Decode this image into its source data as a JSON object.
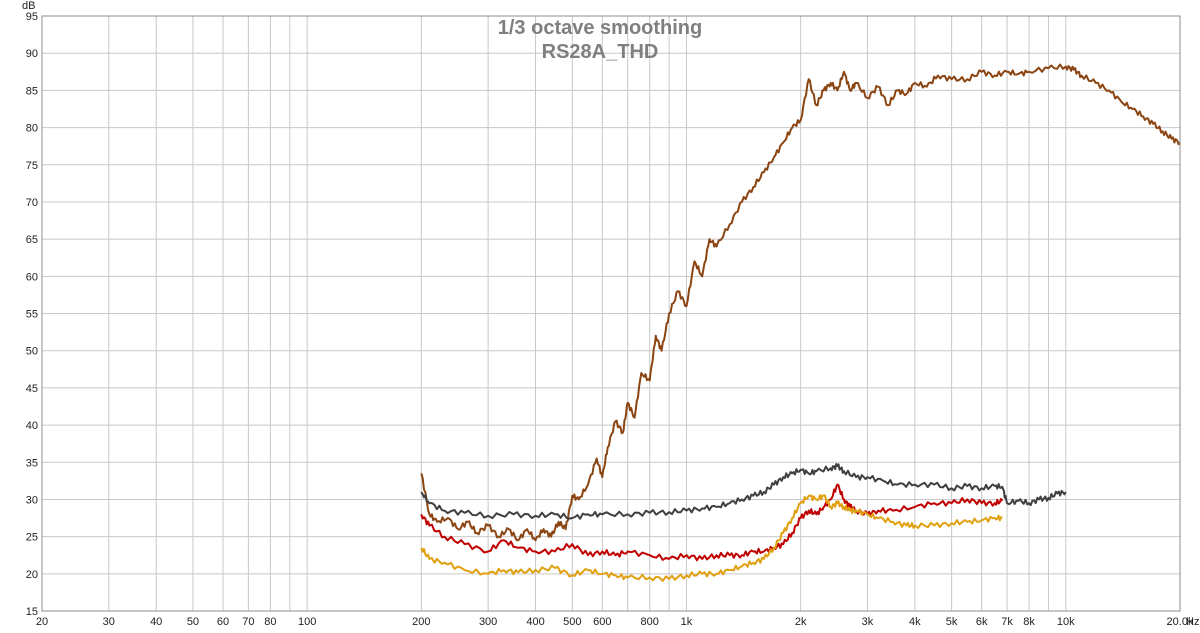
{
  "chart_data": {
    "type": "line",
    "title": "1/3 octave smoothing",
    "subtitle": "RS28A_THD",
    "ylabel": "dB",
    "xunit": "Hz",
    "xscale": "log",
    "xlim": [
      20,
      20000
    ],
    "ylim": [
      15,
      95
    ],
    "grid": true,
    "yticks": [
      15,
      20,
      25,
      30,
      35,
      40,
      45,
      50,
      55,
      60,
      65,
      70,
      75,
      80,
      85,
      90,
      95
    ],
    "xticks": [
      {
        "v": 20,
        "label": "20"
      },
      {
        "v": 30,
        "label": "30"
      },
      {
        "v": 40,
        "label": "40"
      },
      {
        "v": 50,
        "label": "50"
      },
      {
        "v": 60,
        "label": "60"
      },
      {
        "v": 70,
        "label": "70"
      },
      {
        "v": 80,
        "label": "80"
      },
      {
        "v": 100,
        "label": "100"
      },
      {
        "v": 200,
        "label": "200"
      },
      {
        "v": 300,
        "label": "300"
      },
      {
        "v": 400,
        "label": "400"
      },
      {
        "v": 500,
        "label": "500"
      },
      {
        "v": 600,
        "label": "600"
      },
      {
        "v": 800,
        "label": "800"
      },
      {
        "v": 1000,
        "label": "1k"
      },
      {
        "v": 2000,
        "label": "2k"
      },
      {
        "v": 3000,
        "label": "3k"
      },
      {
        "v": 4000,
        "label": "4k"
      },
      {
        "v": 5000,
        "label": "5k"
      },
      {
        "v": 6000,
        "label": "6k"
      },
      {
        "v": 7000,
        "label": "7k"
      },
      {
        "v": 8000,
        "label": "8k"
      },
      {
        "v": 10000,
        "label": "10k"
      },
      {
        "v": 20000,
        "label": "20.0k"
      }
    ],
    "series": [
      {
        "color": "#8b4513",
        "x": [
          200,
          210,
          220,
          235,
          250,
          265,
          280,
          300,
          320,
          340,
          360,
          380,
          400,
          420,
          440,
          460,
          480,
          500,
          520,
          550,
          580,
          600,
          620,
          650,
          680,
          700,
          730,
          760,
          800,
          830,
          860,
          900,
          950,
          1000,
          1050,
          1100,
          1150,
          1200,
          1300,
          1400,
          1500,
          1600,
          1700,
          1800,
          1900,
          2000,
          2100,
          2200,
          2300,
          2400,
          2500,
          2600,
          2700,
          2800,
          3000,
          3200,
          3400,
          3600,
          3800,
          4000,
          4300,
          4600,
          5000,
          5500,
          6000,
          6500,
          7000,
          7500,
          8000,
          9000,
          10000,
          10500,
          11000,
          12000,
          13000,
          14000,
          15000,
          16000,
          17000,
          18000,
          19000,
          20000
        ],
        "y": [
          33.5,
          28,
          27,
          27.5,
          26,
          27,
          25.5,
          26.5,
          25,
          26,
          24.5,
          26,
          24.5,
          26,
          25,
          27,
          26,
          30.5,
          30,
          32,
          35.5,
          33,
          37,
          40.5,
          39,
          43,
          41,
          47,
          46,
          52,
          50,
          55,
          58,
          56,
          62,
          60,
          65,
          64,
          67,
          70,
          72,
          74,
          76,
          78,
          80,
          81,
          86.5,
          83,
          85,
          86,
          85,
          87.5,
          85,
          86,
          84,
          85.5,
          83,
          85,
          84.5,
          86,
          85.5,
          87,
          86.5,
          86.5,
          87.5,
          87,
          87.5,
          87.2,
          87.5,
          88,
          88.2,
          87.8,
          87,
          86,
          85,
          83.5,
          82.5,
          81.5,
          80.5,
          79.5,
          78.5,
          78
        ]
      },
      {
        "color": "#404040",
        "x": [
          200,
          210,
          230,
          260,
          300,
          350,
          400,
          450,
          500,
          550,
          600,
          700,
          800,
          900,
          1000,
          1100,
          1200,
          1300,
          1400,
          1500,
          1600,
          1700,
          1800,
          1900,
          2000,
          2100,
          2200,
          2400,
          2500,
          2600,
          2800,
          3000,
          3300,
          3600,
          4000,
          4500,
          5000,
          5500,
          6000,
          6500,
          6800,
          7000,
          7500,
          8000,
          8500,
          9000,
          9500,
          10000
        ],
        "y": [
          31,
          29.5,
          28.5,
          28.2,
          27.8,
          28,
          27.8,
          28,
          27.5,
          28,
          28,
          28,
          28.2,
          28.3,
          28.5,
          28.8,
          29,
          29.5,
          30,
          30.5,
          31,
          32,
          33,
          33.5,
          34,
          33.5,
          33.8,
          34.2,
          34.5,
          33.8,
          33,
          33,
          32.5,
          32,
          32,
          32,
          31.5,
          31.8,
          31.5,
          31.8,
          31.7,
          29.5,
          29.8,
          29.5,
          30,
          30.2,
          30.8,
          31
        ]
      },
      {
        "color": "#c00000",
        "x": [
          200,
          210,
          230,
          260,
          300,
          330,
          360,
          400,
          450,
          500,
          550,
          600,
          650,
          700,
          800,
          900,
          1000,
          1100,
          1200,
          1300,
          1400,
          1500,
          1600,
          1700,
          1800,
          1900,
          2000,
          2100,
          2200,
          2300,
          2400,
          2500,
          2600,
          2700,
          2800,
          3000,
          3200,
          3500,
          4000,
          4500,
          5000,
          5500,
          6000,
          6500,
          6800
        ],
        "y": [
          28,
          26.5,
          25,
          24,
          23,
          24.5,
          23.5,
          23,
          23,
          24,
          22.5,
          23,
          22.5,
          23,
          22.5,
          22,
          22.5,
          22,
          22.5,
          22.5,
          22.5,
          23,
          23,
          23.5,
          24,
          25.5,
          27.5,
          28.5,
          28,
          29,
          30,
          32,
          30,
          29,
          28.5,
          28,
          28.5,
          28.5,
          29,
          29.5,
          29.5,
          30,
          29.5,
          29.5,
          29.8
        ]
      },
      {
        "color": "#e0a010",
        "x": [
          200,
          210,
          230,
          260,
          300,
          330,
          360,
          400,
          450,
          500,
          550,
          600,
          650,
          700,
          800,
          900,
          1000,
          1100,
          1200,
          1300,
          1400,
          1500,
          1600,
          1700,
          1800,
          1900,
          2000,
          2100,
          2200,
          2300,
          2400,
          2500,
          2600,
          2700,
          2800,
          3000,
          3200,
          3500,
          3800,
          4000,
          4500,
          5000,
          5500,
          6000,
          6500,
          6800
        ],
        "y": [
          23.5,
          22,
          21.5,
          20.5,
          20,
          20.5,
          20.2,
          20.5,
          20.8,
          19.8,
          20.5,
          20,
          19.8,
          19.5,
          19.5,
          19.3,
          19.8,
          20,
          20,
          20.5,
          21,
          21.5,
          22,
          23.5,
          25.5,
          27.5,
          29.5,
          30.5,
          30,
          30.5,
          29,
          29.5,
          29,
          28.5,
          28.5,
          28,
          27.5,
          27,
          26.5,
          26.5,
          26.5,
          26.8,
          27,
          27.2,
          27.5,
          27.5
        ]
      }
    ]
  }
}
